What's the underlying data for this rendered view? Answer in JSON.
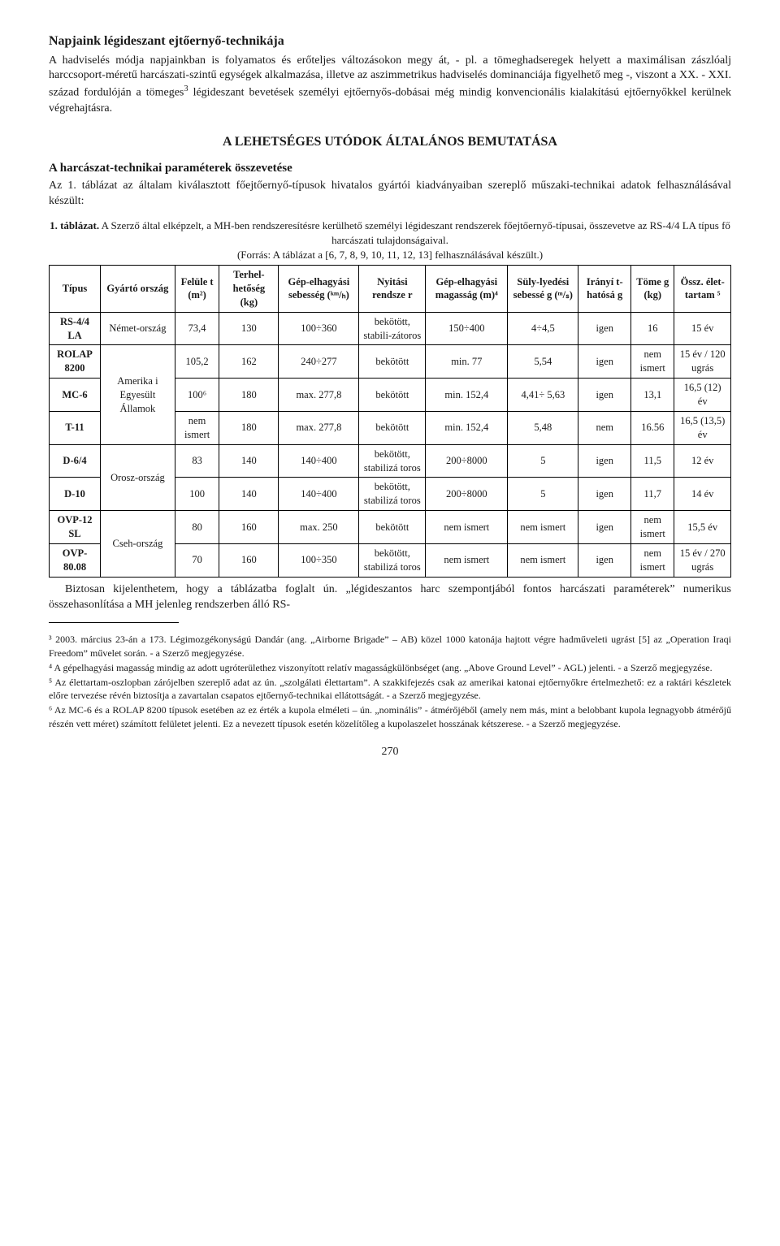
{
  "header": {
    "title": "Napjaink légideszant ejtőernyő-technikája",
    "intro_para": "A hadviselés módja napjainkban is folyamatos és erőteljes változásokon megy át, - pl. a tömeghadseregek helyett a maximálisan zászlóalj harccsoport-méretű harcászati-szintű egységek alkalmazása, illetve az aszimmetrikus hadviselés dominanciája figyelhető meg -, viszont a XX. - XXI. század fordulóján a tömeges",
    "intro_sup": "3",
    "intro_tail": " légideszant bevetések személyi ejtőernyős-dobásai még mindig konvencionális kialakítású ejtőernyőkkel kerülnek végrehajtásra."
  },
  "section2": {
    "center_heading": "A LEHETSÉGES UTÓDOK ÁLTALÁNOS BEMUTATÁSA",
    "subheading": "A harcászat-technikai paraméterek összevetése",
    "lead_para": "Az 1. táblázat az általam kiválasztott főejtőernyő-típusok hivatalos gyártói kiadványaiban szereplő műszaki-technikai adatok felhasználásával készült:"
  },
  "table": {
    "caption_line1_bold": "1. táblázat.",
    "caption_line1_rest": " A Szerző által elképzelt, a MH-ben rendszeresítésre kerülhető személyi légideszant rendszerek főejtőernyő-típusai, összevetve az RS-4/4 LA típus fő harcászati tulajdonságaival.",
    "caption_line2": "(Forrás: A táblázat a [6, 7, 8, 9, 10, 11, 12, 13] felhasználásával készült.)",
    "columns": [
      "Típus",
      "Gyártó ország",
      "Felüle t (m²)",
      "Terhel-hetőség (kg)",
      "Gép-elhagyási sebesség (ᵏᵐ/ₕ)",
      "Nyitási rendsze r",
      "Gép-elhagyási magasság (m)⁴",
      "Süly-lyedési sebessé g (ᵐ/ₛ)",
      "Irányí t-hatósá g",
      "Töme g (kg)",
      "Össz. élet-tartam ⁵"
    ],
    "rows": [
      {
        "tipus": "RS-4/4 LA",
        "orszag": "Német-ország",
        "felulet": "73,4",
        "terhel": "130",
        "sebesseg": "100÷360",
        "nyitas": "bekötött, stabili-zátoros",
        "magassag": "150÷400",
        "sulyed": "4÷4,5",
        "irany": "igen",
        "tomeg": "16",
        "elettartam": "15 év"
      },
      {
        "tipus": "ROLAP 8200",
        "orszag_merge": true,
        "felulet": "105,2",
        "terhel": "162",
        "sebesseg": "240÷277",
        "nyitas": "bekötött",
        "magassag": "min. 77",
        "sulyed": "5,54",
        "irany": "igen",
        "tomeg": "nem ismert",
        "elettartam": "15 év / 120 ugrás"
      },
      {
        "tipus": "MC-6",
        "felulet": "100⁶",
        "terhel": "180",
        "sebesseg": "max. 277,8",
        "nyitas": "bekötött",
        "magassag": "min. 152,4",
        "sulyed": "4,41÷ 5,63",
        "irany": "igen",
        "tomeg": "13,1",
        "elettartam": "16,5 (12) év"
      },
      {
        "tipus": "T-11",
        "felulet": "nem ismert",
        "terhel": "180",
        "sebesseg": "max. 277,8",
        "nyitas": "bekötött",
        "magassag": "min. 152,4",
        "sulyed": "5,48",
        "irany": "nem",
        "tomeg": "16.56",
        "elettartam": "16,5 (13,5) év"
      },
      {
        "tipus": "D-6/4",
        "orszag_merge2": true,
        "felulet": "83",
        "terhel": "140",
        "sebesseg": "140÷400",
        "nyitas": "bekötött, stabilizá toros",
        "magassag": "200÷8000",
        "sulyed": "5",
        "irany": "igen",
        "tomeg": "11,5",
        "elettartam": "12 év"
      },
      {
        "tipus": "D-10",
        "felulet": "100",
        "terhel": "140",
        "sebesseg": "140÷400",
        "nyitas": "bekötött, stabilizá toros",
        "magassag": "200÷8000",
        "sulyed": "5",
        "irany": "igen",
        "tomeg": "11,7",
        "elettartam": "14 év"
      },
      {
        "tipus": "OVP-12 SL",
        "orszag_merge3": true,
        "felulet": "80",
        "terhel": "160",
        "sebesseg": "max. 250",
        "nyitas": "bekötött",
        "magassag": "nem ismert",
        "sulyed": "nem ismert",
        "irany": "igen",
        "tomeg": "nem ismert",
        "elettartam": "15,5 év"
      },
      {
        "tipus": "OVP-80.08",
        "felulet": "70",
        "terhel": "160",
        "sebesseg": "100÷350",
        "nyitas": "bekötött, stabilizá toros",
        "magassag": "nem ismert",
        "sulyed": "nem ismert",
        "irany": "igen",
        "tomeg": "nem ismert",
        "elettartam": "15 év / 270 ugrás"
      }
    ],
    "country_groups": {
      "usa": "Amerika i Egyesült Államok",
      "russia": "Orosz-ország",
      "czech": "Cseh-ország"
    }
  },
  "post_table_para": "Biztosan kijelenthetem, hogy a táblázatba foglalt ún. „légideszantos harc szempontjából fontos harcászati paraméterek” numerikus összehasonlítása a MH jelenleg rendszerben álló RS-",
  "footnotes": {
    "fn3": "³ 2003. március 23-án a 173. Légimozgékonyságú Dandár (ang. „Airborne Brigade” – AB) közel 1000 katonája hajtott végre hadműveleti ugrást [5] az „Operation Iraqi Freedom” művelet során. - a Szerző megjegyzése.",
    "fn4": "⁴ A gépelhagyási magasság mindig az adott ugróterülethez viszonyított relatív magasságkülönbséget (ang. „Above Ground Level” - AGL) jelenti. - a Szerző megjegyzése.",
    "fn5": "⁵ Az élettartam-oszlopban zárójelben szereplő adat az ún. „szolgálati élettartam”. A szakkifejezés csak az amerikai katonai ejtőernyőkre értelmezhető: ez a raktári készletek előre tervezése révén biztosítja a zavartalan csapatos ejtőernyő-technikai ellátottságát. - a Szerző megjegyzése.",
    "fn6": "⁶ Az MC-6 és a ROLAP 8200 típusok esetében az ez érték a kupola elméleti – ún. „nominális” - átmérőjéből (amely nem más, mint a belobbant kupola legnagyobb átmérőjű részén vett méret) számított felületet jelenti. Ez a nevezett típusok esetén közelítőleg a kupolaszelet hosszának kétszerese. - a Szerző megjegyzése."
  },
  "pagenum": "270"
}
